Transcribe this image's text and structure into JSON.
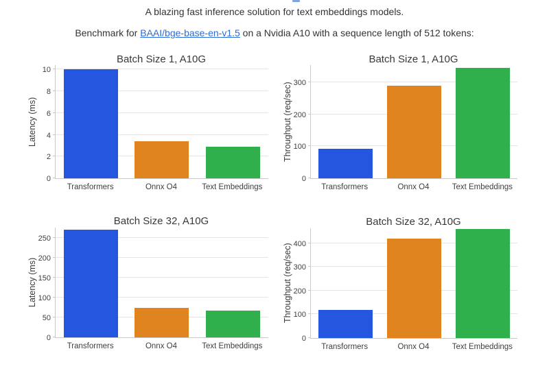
{
  "page": {
    "tagline": "A blazing fast inference solution for text embeddings models.",
    "benchmark_prefix": "Benchmark for ",
    "benchmark_link_text": "BAAI/bge-base-en-v1.5",
    "benchmark_suffix": " on a Nvidia A10 with a sequence length of 512 tokens:"
  },
  "colors": {
    "series": [
      "#2456E0",
      "#E08420",
      "#2FB04C"
    ],
    "link": "#2b6cd9",
    "text": "#333333",
    "axis_line": "#c9c9c9",
    "gridline": "#e5e5e5",
    "tick_text": "#3c4043"
  },
  "chart_data": [
    {
      "type": "bar",
      "title": "Batch Size 1, A10G",
      "ylabel": "Latency (ms)",
      "xlabel": "",
      "categories": [
        "Transformers",
        "Onnx O4",
        "Text Embeddings"
      ],
      "values": [
        10,
        3.4,
        2.9
      ],
      "yticks": [
        0,
        2,
        4,
        6,
        8,
        10
      ],
      "ylim": [
        0,
        10.4
      ],
      "grid": true,
      "legend": "none"
    },
    {
      "type": "bar",
      "title": "Batch Size 1, A10G",
      "ylabel": "Throughput (req/sec)",
      "xlabel": "",
      "categories": [
        "Transformers",
        "Onnx O4",
        "Text Embeddings"
      ],
      "values": [
        92,
        290,
        345
      ],
      "yticks": [
        0,
        100,
        200,
        300
      ],
      "ylim": [
        0,
        354
      ],
      "grid": true,
      "legend": "none"
    },
    {
      "type": "bar",
      "title": "Batch Size 32, A10G",
      "ylabel": "Latency (ms)",
      "xlabel": "",
      "categories": [
        "Transformers",
        "Onnx O4",
        "Text Embeddings"
      ],
      "values": [
        270,
        75,
        68
      ],
      "yticks": [
        0,
        50,
        100,
        150,
        200,
        250
      ],
      "ylim": [
        0,
        276
      ],
      "grid": true,
      "legend": "none"
    },
    {
      "type": "bar",
      "title": "Batch Size 32, A10G",
      "ylabel": "Throughput (req/sec)",
      "xlabel": "",
      "categories": [
        "Transformers",
        "Onnx O4",
        "Text Embeddings"
      ],
      "values": [
        118,
        420,
        460
      ],
      "yticks": [
        0,
        100,
        200,
        300,
        400
      ],
      "ylim": [
        0,
        463
      ],
      "grid": true,
      "legend": "none"
    }
  ]
}
